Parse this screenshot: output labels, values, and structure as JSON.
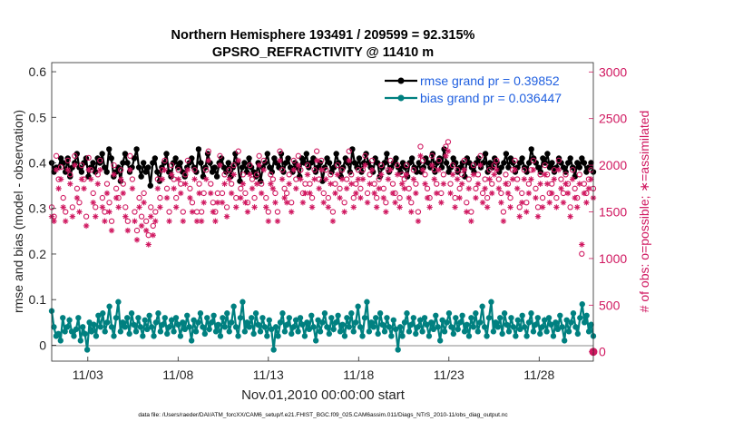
{
  "chart_data": {
    "type": "line",
    "title": "Northern Hemisphere 193491 / 209599 = 92.315%",
    "subtitle": "GPSRO_REFRACTIVITY @ 11410 m",
    "xlabel": "Nov.01,2010 00:00:00 start",
    "ylabel": "rmse and bias (model - observation)",
    "y2label": "# of obs: o=possible; ∗=assimilated",
    "footer": "data file: /Users/raeder/DAI/ATM_forcXX/CAM6_setup/f.e21.FHIST_BGC.f09_025.CAM6assim.011/Diags_NTrS_2010-11/obs_diag_output.nc",
    "x_unit": "days since Nov.01,2010 00:00",
    "xlim": [
      0,
      30
    ],
    "ylim": [
      -0.035,
      0.62
    ],
    "y2lim": [
      -100,
      3100
    ],
    "xticks": [
      {
        "value": 2,
        "label": "11/03"
      },
      {
        "value": 7,
        "label": "11/08"
      },
      {
        "value": 12,
        "label": "11/13"
      },
      {
        "value": 17,
        "label": "11/18"
      },
      {
        "value": 22,
        "label": "11/23"
      },
      {
        "value": 27,
        "label": "11/28"
      }
    ],
    "yticks": [
      {
        "value": 0,
        "label": "0"
      },
      {
        "value": 0.1,
        "label": "0.1"
      },
      {
        "value": 0.2,
        "label": "0.2"
      },
      {
        "value": 0.3,
        "label": "0.3"
      },
      {
        "value": 0.4,
        "label": "0.4"
      },
      {
        "value": 0.5,
        "label": "0.5"
      },
      {
        "value": 0.6,
        "label": "0.6"
      }
    ],
    "y2ticks": [
      {
        "value": 0,
        "label": "0"
      },
      {
        "value": 500,
        "label": "500"
      },
      {
        "value": 1000,
        "label": "1000"
      },
      {
        "value": 1500,
        "label": "1500"
      },
      {
        "value": 2000,
        "label": "2000"
      },
      {
        "value": 2500,
        "label": "2500"
      },
      {
        "value": 3000,
        "label": "3000"
      }
    ],
    "legend_position": "top-right",
    "series": [
      {
        "name": "rmse grand pr = 0.39852",
        "axis": "left",
        "color": "#000000",
        "marker": "dot",
        "label_color": "#1f5fe0",
        "values": [
          0.4,
          0.38,
          0.39,
          0.39,
          0.41,
          0.4,
          0.38,
          0.41,
          0.37,
          0.39,
          0.4,
          0.42,
          0.39,
          0.38,
          0.4,
          0.41,
          0.37,
          0.39,
          0.4,
          0.38,
          0.41,
          0.4,
          0.42,
          0.39,
          0.38,
          0.43,
          0.41,
          0.37,
          0.38,
          0.39,
          0.36,
          0.4,
          0.42,
          0.4,
          0.38,
          0.39,
          0.41,
          0.43,
          0.39,
          0.37,
          0.4,
          0.38,
          0.39,
          0.35,
          0.4,
          0.41,
          0.38,
          0.36,
          0.39,
          0.4,
          0.42,
          0.38,
          0.37,
          0.4,
          0.41,
          0.39,
          0.4,
          0.38,
          0.37,
          0.39,
          0.4,
          0.41,
          0.39,
          0.38,
          0.43,
          0.4,
          0.37,
          0.39,
          0.42,
          0.4,
          0.38,
          0.39,
          0.37,
          0.4,
          0.41,
          0.39,
          0.38,
          0.4,
          0.37,
          0.39,
          0.42,
          0.4,
          0.36,
          0.39,
          0.4,
          0.38,
          0.41,
          0.39,
          0.38,
          0.37,
          0.4,
          0.36,
          0.39,
          0.4,
          0.42,
          0.39,
          0.38,
          0.41,
          0.4,
          0.39,
          0.42,
          0.38,
          0.4,
          0.41,
          0.39,
          0.38,
          0.4,
          0.39,
          0.37,
          0.41,
          0.4,
          0.42,
          0.39,
          0.4,
          0.41,
          0.38,
          0.39,
          0.4,
          0.36,
          0.39,
          0.41,
          0.4,
          0.38,
          0.39,
          0.42,
          0.4,
          0.37,
          0.39,
          0.41,
          0.4,
          0.38,
          0.43,
          0.4,
          0.39,
          0.41,
          0.38,
          0.4,
          0.42,
          0.4,
          0.39,
          0.38,
          0.41,
          0.4,
          0.37,
          0.39,
          0.4,
          0.42,
          0.38,
          0.39,
          0.4,
          0.41,
          0.39,
          0.38,
          0.4,
          0.39,
          0.37,
          0.4,
          0.41,
          0.39,
          0.38,
          0.4,
          0.38,
          0.39,
          0.41,
          0.4,
          0.39,
          0.42,
          0.38,
          0.4,
          0.41,
          0.39,
          0.43,
          0.4,
          0.38,
          0.39,
          0.41,
          0.4,
          0.38,
          0.39,
          0.4,
          0.37,
          0.41,
          0.4,
          0.39,
          0.38,
          0.4,
          0.41,
          0.39,
          0.4,
          0.42,
          0.38,
          0.4,
          0.39,
          0.41,
          0.4,
          0.38,
          0.39,
          0.4,
          0.42,
          0.39,
          0.41,
          0.4,
          0.38,
          0.39,
          0.4,
          0.41,
          0.39,
          0.38,
          0.4,
          0.43,
          0.41,
          0.4,
          0.39,
          0.38,
          0.41,
          0.4,
          0.42,
          0.39,
          0.4,
          0.38,
          0.39,
          0.41,
          0.4,
          0.39,
          0.38,
          0.4,
          0.41,
          0.39,
          0.37,
          0.4,
          0.39,
          0.41,
          0.4,
          0.38,
          0.39,
          0.4,
          0.38
        ]
      },
      {
        "name": "bias grand pr = 0.036447",
        "axis": "left",
        "color": "#008080",
        "marker": "dot",
        "label_color": "#1f5fe0",
        "values": [
          0.075,
          0.04,
          0.02,
          0.025,
          0.01,
          0.06,
          0.03,
          0.04,
          0.055,
          0.03,
          0.02,
          0.035,
          0.06,
          0.01,
          0.04,
          0.025,
          -0.01,
          0.05,
          0.03,
          0.045,
          0.02,
          0.065,
          0.04,
          0.07,
          0.03,
          0.05,
          0.085,
          0.04,
          0.02,
          0.06,
          0.095,
          0.03,
          0.05,
          0.04,
          0.06,
          0.025,
          0.07,
          0.045,
          0.03,
          0.06,
          0.04,
          0.02,
          0.055,
          0.035,
          0.065,
          0.04,
          0.02,
          0.05,
          0.07,
          0.03,
          0.045,
          0.06,
          0.025,
          0.04,
          0.055,
          0.03,
          0.06,
          0.045,
          0.02,
          0.05,
          0.035,
          0.065,
          0.04,
          0.01,
          0.055,
          0.03,
          0.05,
          0.07,
          0.04,
          0.025,
          0.06,
          0.035,
          0.05,
          0.065,
          0.03,
          0.045,
          0.02,
          0.06,
          0.04,
          0.07,
          0.03,
          0.05,
          0.085,
          0.04,
          0.02,
          0.06,
          0.095,
          0.03,
          0.05,
          0.04,
          0.06,
          0.025,
          0.07,
          0.045,
          0.03,
          0.06,
          0.04,
          0.02,
          0.055,
          0.035,
          -0.01,
          0.04,
          0.02,
          0.05,
          0.07,
          0.03,
          0.045,
          0.06,
          0.025,
          0.04,
          0.055,
          0.03,
          0.06,
          0.045,
          0.02,
          0.05,
          0.035,
          0.065,
          0.04,
          0.01,
          0.055,
          0.03,
          0.05,
          0.07,
          0.04,
          0.025,
          0.06,
          0.035,
          0.05,
          0.065,
          0.03,
          0.045,
          0.02,
          0.06,
          0.04,
          0.07,
          0.03,
          0.05,
          0.085,
          0.04,
          0.02,
          0.06,
          0.095,
          0.03,
          0.05,
          0.04,
          0.06,
          0.025,
          0.07,
          0.045,
          0.03,
          0.06,
          0.04,
          0.02,
          0.055,
          0.035,
          -0.01,
          0.04,
          0.02,
          0.05,
          0.07,
          0.03,
          0.045,
          0.06,
          0.025,
          0.04,
          0.055,
          0.03,
          0.06,
          0.045,
          0.02,
          0.05,
          0.035,
          0.065,
          0.04,
          0.01,
          0.055,
          0.03,
          0.05,
          0.07,
          0.04,
          0.025,
          0.06,
          0.035,
          0.05,
          0.065,
          0.03,
          0.045,
          0.02,
          0.06,
          0.04,
          0.07,
          0.03,
          0.05,
          0.085,
          0.04,
          0.02,
          0.06,
          0.095,
          0.03,
          0.05,
          0.04,
          0.06,
          0.025,
          0.07,
          0.045,
          0.03,
          0.06,
          0.04,
          0.02,
          0.055,
          0.035,
          0.065,
          0.04,
          0.02,
          0.05,
          0.07,
          0.03,
          0.045,
          0.06,
          0.025,
          0.04,
          0.055,
          0.03,
          0.06,
          0.045,
          0.02,
          0.05,
          0.035,
          0.065,
          0.04,
          0.01,
          0.055,
          0.03,
          0.05,
          0.07,
          0.04,
          0.025,
          0.06,
          0.09,
          0.05,
          0.065,
          0.03,
          0.045,
          0.02
        ]
      },
      {
        "name": "possible",
        "axis": "right",
        "color": "#d01860",
        "marker": "circle",
        "values": [
          1550,
          1450,
          2100,
          1850,
          1980,
          1650,
          1500,
          2050,
          1900,
          1550,
          2100,
          1750,
          1600,
          2000,
          1850,
          1450,
          2080,
          1950,
          1700,
          1550,
          1900,
          2050,
          1650,
          1500,
          1800,
          1600,
          1400,
          2000,
          1750,
          1650,
          1950,
          1800,
          1550,
          1400,
          2100,
          1850,
          1500,
          1300,
          1650,
          1450,
          1700,
          1400,
          1250,
          1550,
          1350,
          1500,
          1850,
          1650,
          1950,
          2050,
          1750,
          1500,
          2000,
          1850,
          1650,
          1950,
          1800,
          1500,
          1900,
          2050,
          1750,
          1600,
          1950,
          1500,
          1800,
          1500,
          1700,
          1950,
          2150,
          1800,
          1600,
          1500,
          1700,
          2100,
          1700,
          1900,
          1550,
          1950,
          1800,
          2000,
          1650,
          2150,
          1750,
          1900,
          1700,
          1600,
          2000,
          1850,
          1650,
          1900,
          2100,
          1800,
          2050,
          1650,
          1500,
          1900,
          1850,
          1700,
          1500,
          2150,
          1950,
          1750,
          1700,
          1900,
          1600,
          2050,
          1850,
          2100,
          1950,
          1700,
          1800,
          2000,
          1800,
          1650,
          1950,
          2150,
          1850,
          2050,
          1700,
          1950,
          1650,
          1900,
          1500,
          1800,
          2000,
          1750,
          1950,
          1600,
          1850,
          2150,
          1900,
          1650,
          1800,
          1950,
          1750,
          1950,
          2100,
          1700,
          1900,
          2050,
          1800,
          1650,
          1850,
          2000,
          1750,
          1600,
          1950,
          2050,
          1800,
          1700,
          2000,
          1650,
          1900,
          1850,
          2000,
          1750,
          1600,
          1950,
          1800,
          1500,
          2200,
          2050,
          1900,
          1750,
          1650,
          2100,
          1950,
          1800,
          2050,
          1700,
          1900,
          2200,
          2250,
          1800,
          2000,
          1650,
          1950,
          1750,
          1900,
          2050,
          1600,
          1850,
          1500,
          2000,
          1750,
          1900,
          2100,
          1700,
          1850,
          1650,
          1950,
          1800,
          2000,
          2050,
          1850,
          1700,
          1500,
          1900,
          1800,
          1650,
          1950,
          2050,
          1850,
          1550,
          1700,
          1950,
          1600,
          1800,
          1950,
          2050,
          1750,
          1550,
          1900,
          1650,
          2000,
          1900,
          1700,
          1800,
          1950,
          1650,
          2050,
          1850,
          1700,
          1900,
          1800,
          1550,
          1950,
          1750,
          1650,
          1900,
          1050,
          1800,
          1700,
          1850,
          1950,
          1750
        ]
      },
      {
        "name": "assimilated",
        "axis": "right",
        "color": "#d01860",
        "marker": "asterisk",
        "values": [
          1450,
          1400,
          1950,
          1750,
          1850,
          1550,
          1400,
          1950,
          1800,
          1450,
          2000,
          1650,
          1500,
          1850,
          1750,
          1350,
          1950,
          1850,
          1600,
          1450,
          1800,
          1950,
          1550,
          1400,
          1700,
          1500,
          1300,
          1900,
          1650,
          1550,
          1850,
          1700,
          1450,
          1300,
          1950,
          1750,
          1400,
          1200,
          1550,
          1350,
          1600,
          1300,
          1150,
          1450,
          1250,
          1400,
          1750,
          1550,
          1850,
          1950,
          1650,
          1400,
          1900,
          1750,
          1550,
          1850,
          1700,
          1400,
          1800,
          1950,
          1650,
          1500,
          1850,
          1400,
          1700,
          1400,
          1600,
          1850,
          2050,
          1700,
          1500,
          1400,
          1600,
          2000,
          1600,
          1800,
          1450,
          1850,
          1700,
          1900,
          1550,
          2050,
          1650,
          1800,
          1600,
          1500,
          1900,
          1750,
          1550,
          1800,
          2000,
          1700,
          1950,
          1550,
          1400,
          1800,
          1750,
          1600,
          1400,
          2050,
          1850,
          1650,
          1600,
          1800,
          1500,
          1950,
          1750,
          2000,
          1850,
          1600,
          1700,
          1900,
          1700,
          1550,
          1850,
          2050,
          1750,
          1950,
          1600,
          1850,
          1550,
          1800,
          1400,
          1700,
          1900,
          1650,
          1850,
          1500,
          1750,
          2050,
          1800,
          1550,
          1700,
          1850,
          1650,
          1850,
          2000,
          1600,
          1800,
          1950,
          1700,
          1550,
          1750,
          1900,
          1650,
          1500,
          1850,
          1950,
          1700,
          1600,
          1900,
          1550,
          1800,
          1750,
          1900,
          1650,
          1500,
          1850,
          1700,
          1400,
          2100,
          1950,
          1800,
          1650,
          1550,
          2000,
          1850,
          1700,
          1950,
          1600,
          1800,
          2100,
          2150,
          1700,
          1900,
          1550,
          1850,
          1650,
          1800,
          1950,
          1500,
          1750,
          1400,
          1900,
          1650,
          1800,
          2000,
          1600,
          1750,
          1550,
          1850,
          1700,
          1900,
          1950,
          1750,
          1600,
          1400,
          1800,
          1700,
          1550,
          1850,
          1950,
          1750,
          1450,
          1600,
          1850,
          1500,
          1700,
          1850,
          1950,
          1650,
          1450,
          1800,
          1550,
          1900,
          1800,
          1600,
          1700,
          1850,
          1550,
          1950,
          1750,
          1600,
          1800,
          1700,
          1450,
          1850,
          1650,
          1550,
          1800,
          1150,
          1700,
          1600,
          1750,
          1850,
          1650
        ]
      }
    ]
  }
}
